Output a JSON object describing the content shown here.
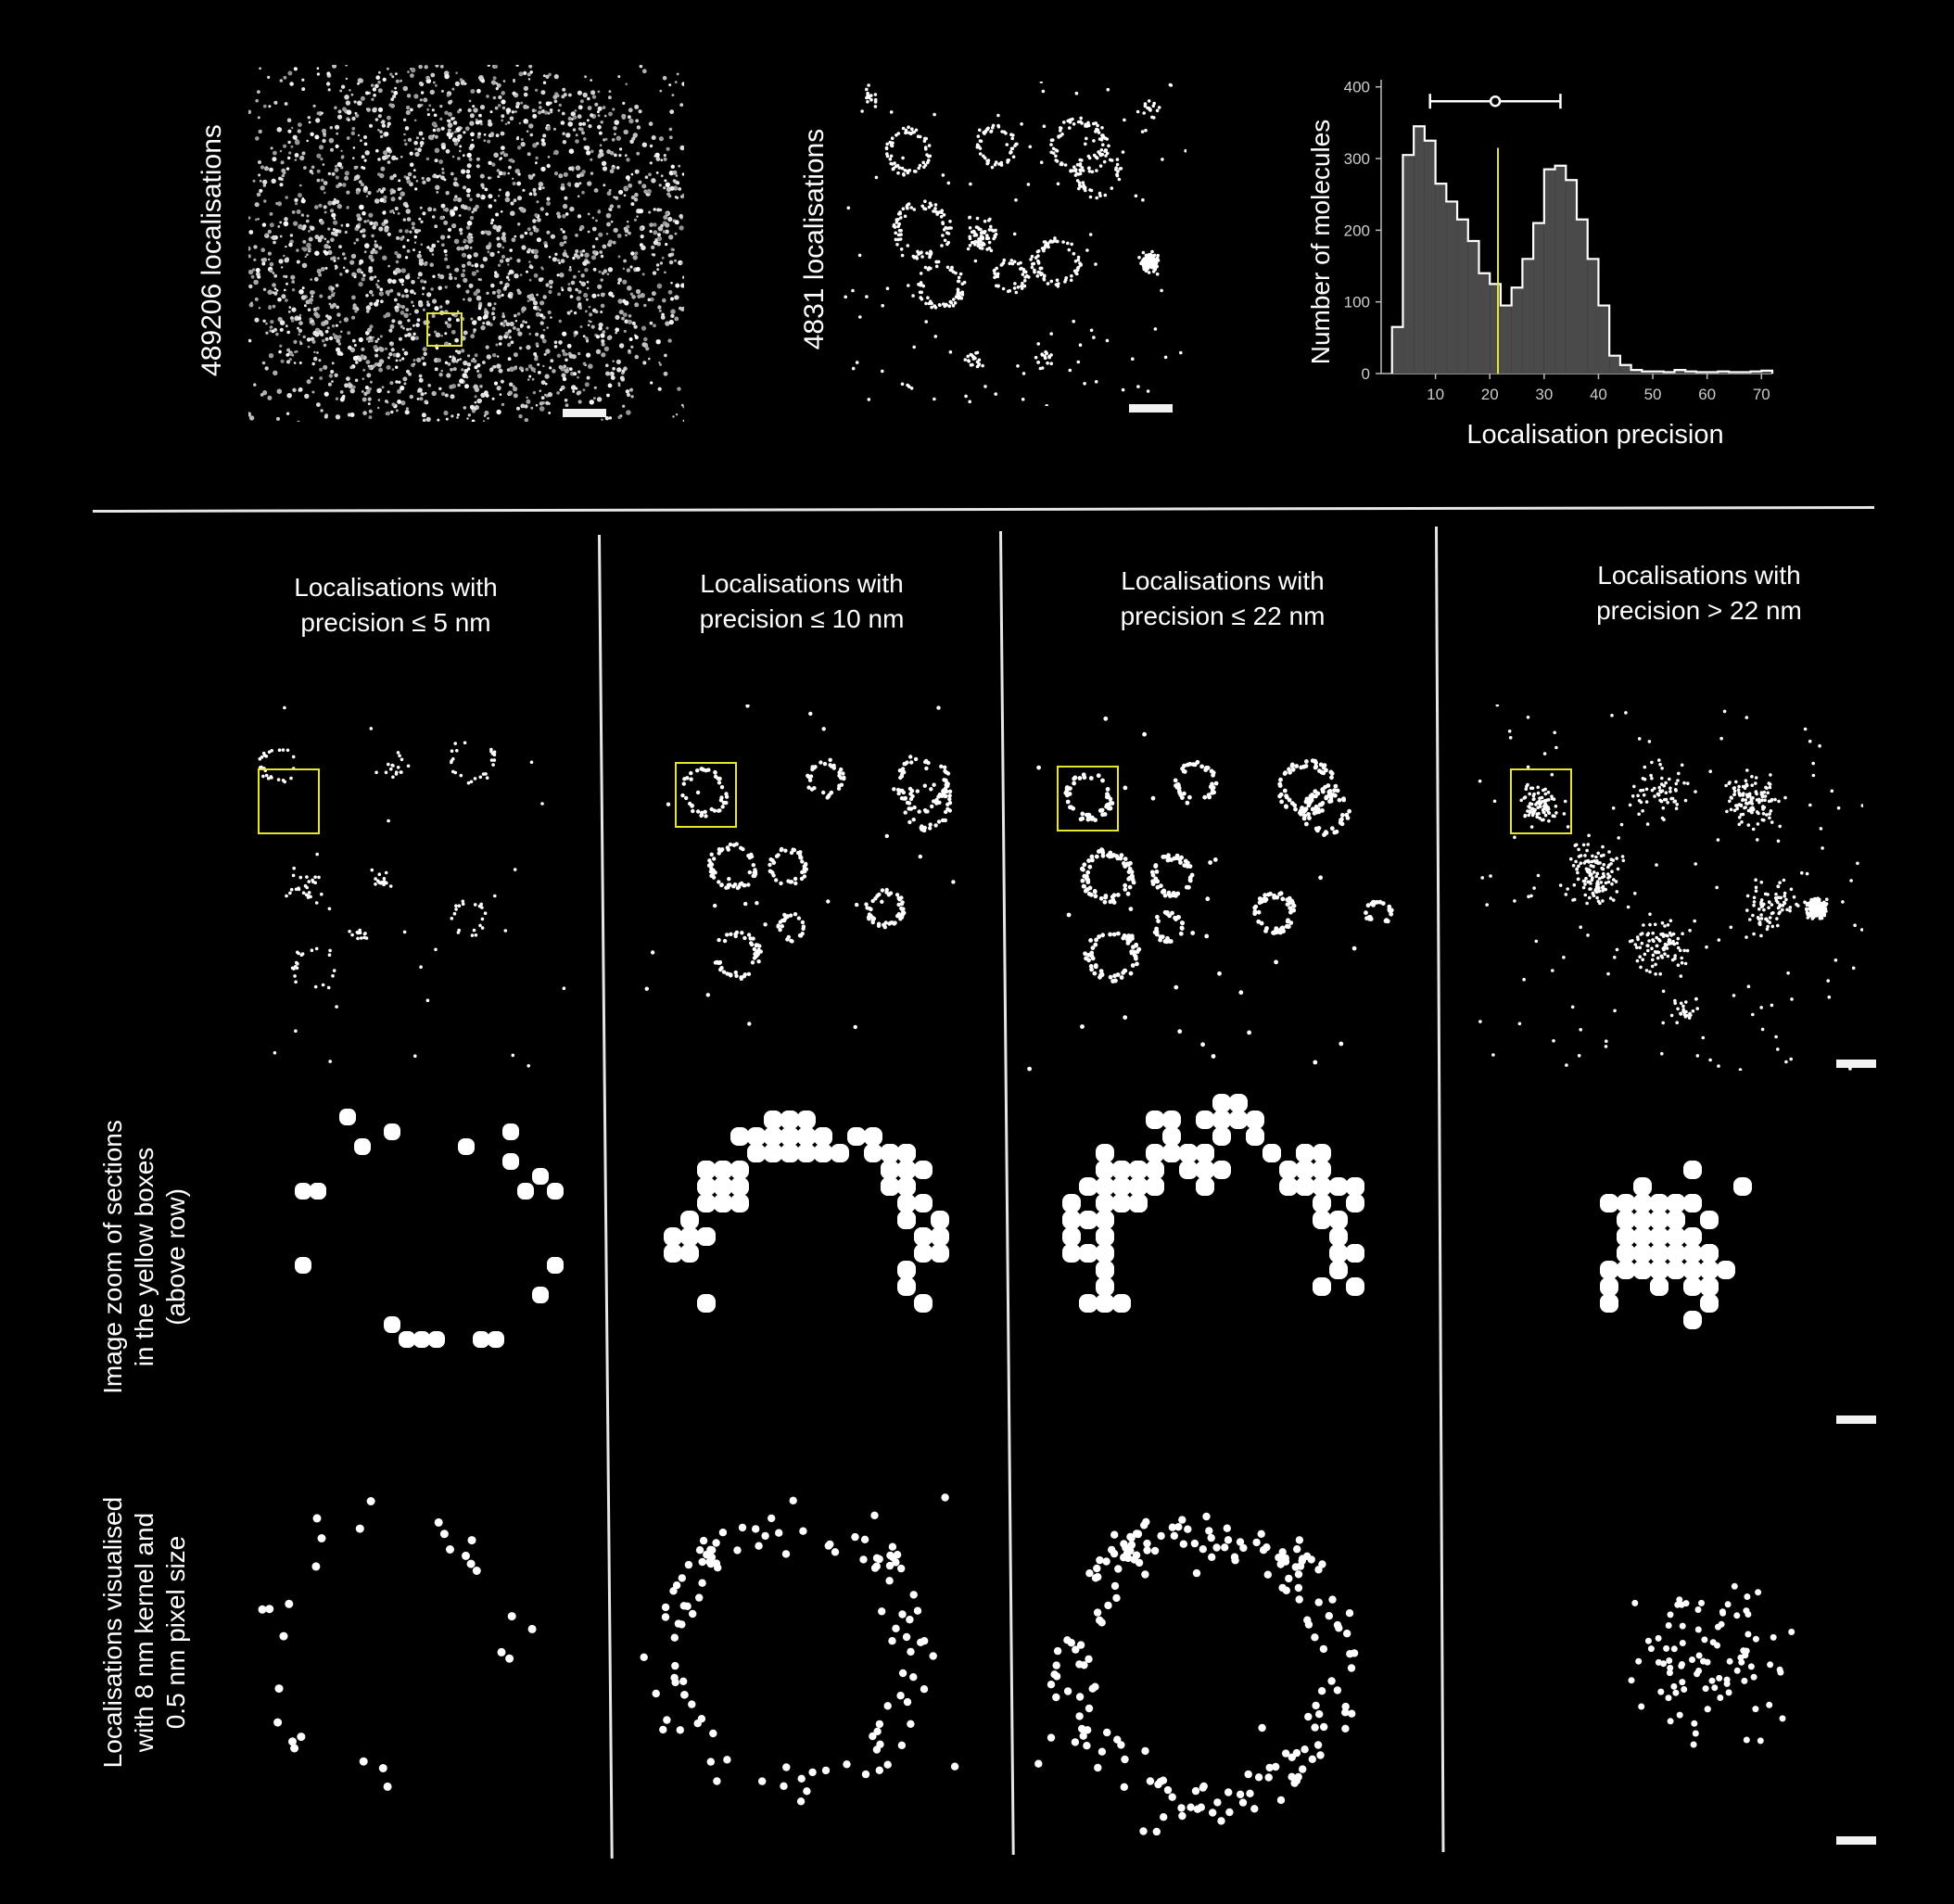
{
  "top": {
    "left_image_label": "489206 localisations",
    "middle_image_label": "4831 localisations"
  },
  "histogram": {
    "ylabel": "Number of molecules",
    "xlabel": "Localisation precision",
    "colors": {
      "bars": "#4a4a4a",
      "outline": "#ffffff",
      "marker": "#e6e62e"
    }
  },
  "columns": [
    {
      "line1": "Localisations with",
      "line2": "precision ≤ 5 nm"
    },
    {
      "line1": "Localisations with",
      "line2": "precision ≤ 10 nm"
    },
    {
      "line1": "Localisations with",
      "line2": "precision ≤ 22 nm"
    },
    {
      "line1": "Localisations with",
      "line2": "precision > 22 nm"
    }
  ],
  "row_labels": {
    "zoom": [
      "Image zoom of sections",
      "in the yellow boxes",
      "(above row)"
    ],
    "kernel": [
      "Localisations visualised",
      "with 8 nm kernel and",
      "0.5 nm pixel size"
    ]
  },
  "chart_data": {
    "type": "bar",
    "title": "",
    "xlabel": "Localisation precision",
    "ylabel": "Number of molecules",
    "xlim": [
      0,
      72
    ],
    "ylim": [
      0,
      410
    ],
    "xticks": [
      10,
      20,
      30,
      40,
      50,
      60,
      70
    ],
    "yticks": [
      0,
      100,
      200,
      300,
      400
    ],
    "bin_width": 2,
    "bin_starts": [
      2,
      4,
      6,
      8,
      10,
      12,
      14,
      16,
      18,
      20,
      22,
      24,
      26,
      28,
      30,
      32,
      34,
      36,
      38,
      40,
      42,
      44,
      46,
      48,
      50,
      52,
      54,
      56,
      58,
      60,
      62,
      64,
      66,
      68,
      70
    ],
    "values": [
      65,
      305,
      345,
      325,
      265,
      240,
      215,
      185,
      140,
      125,
      95,
      120,
      160,
      210,
      285,
      290,
      270,
      215,
      160,
      95,
      25,
      12,
      5,
      3,
      3,
      2,
      5,
      3,
      2,
      2,
      3,
      2,
      2,
      3,
      4
    ],
    "median_line": 21.5,
    "errorbar": {
      "center": 21,
      "low": 9,
      "high": 33,
      "y": 380
    }
  }
}
